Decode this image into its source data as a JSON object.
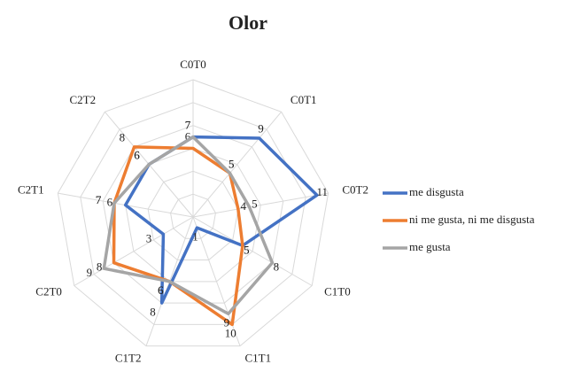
{
  "chart_data": {
    "type": "radar",
    "title": "Olor",
    "categories": [
      "C0T0",
      "C0T1",
      "C0T2",
      "C1T0",
      "C1T1",
      "C1T2",
      "C2T0",
      "C2T1",
      "C2T2"
    ],
    "series": [
      {
        "name": "me disgusta",
        "color": "#4472c4",
        "values": [
          7,
          9,
          11,
          5,
          1,
          8,
          3,
          6,
          6
        ]
      },
      {
        "name": "ni me gusta, ni me disgusta",
        "color": "#ed7d31",
        "values": [
          6,
          5,
          4,
          5,
          10,
          6,
          8,
          7,
          8
        ]
      },
      {
        "name": "me gusta",
        "color": "#a5a5a5",
        "values": [
          7,
          5,
          5,
          8,
          9,
          6,
          9,
          7,
          6
        ]
      }
    ],
    "ylim": [
      0,
      12
    ],
    "yticks": [
      0,
      2,
      4,
      6,
      8,
      10,
      12
    ],
    "grid": true,
    "legend": "right"
  }
}
